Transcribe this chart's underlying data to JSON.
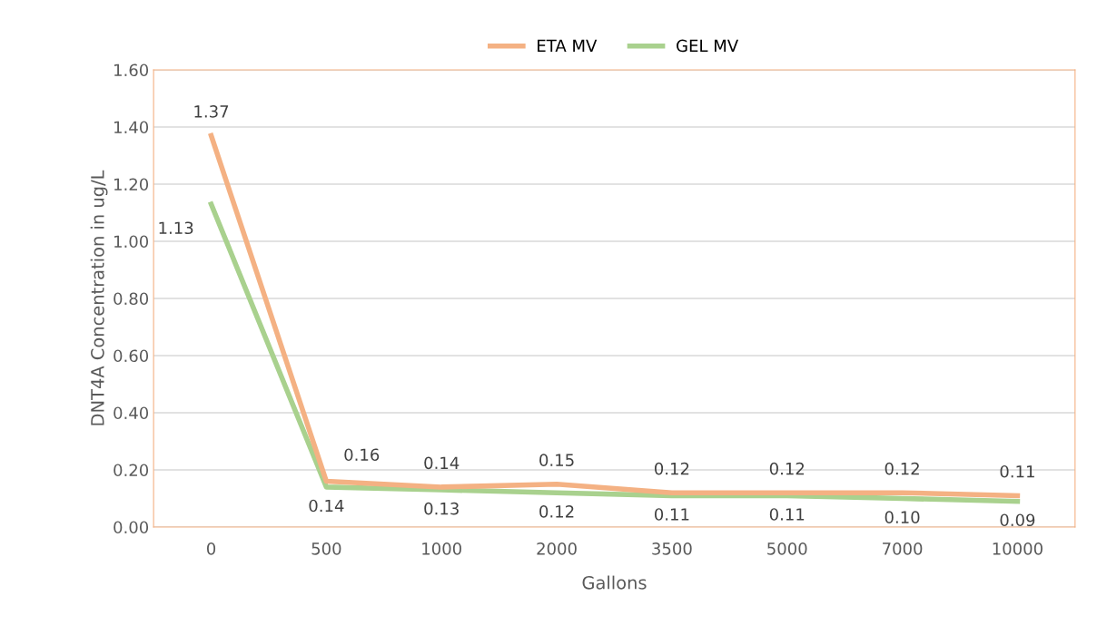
{
  "chart_data": {
    "type": "line",
    "xlabel": "Gallons",
    "ylabel": "DNT4A Concentration in ug/L",
    "categories": [
      "0",
      "500",
      "1000",
      "2000",
      "3500",
      "5000",
      "7000",
      "10000"
    ],
    "series": [
      {
        "name": "ETA MV",
        "color": "#f4b183",
        "values": [
          1.37,
          0.16,
          0.14,
          0.15,
          0.12,
          0.12,
          0.12,
          0.11
        ],
        "value_labels": [
          "1.37",
          "0.16",
          "0.14",
          "0.15",
          "0.12",
          "0.12",
          "0.12",
          "0.11"
        ]
      },
      {
        "name": "GEL MV",
        "color": "#a9d18e",
        "values": [
          1.13,
          0.14,
          0.13,
          0.12,
          0.11,
          0.11,
          0.1,
          0.09
        ],
        "value_labels": [
          "1.13",
          "0.14",
          "0.13",
          "0.12",
          "0.11",
          "0.11",
          "0.10",
          "0.09"
        ]
      }
    ],
    "ylim": [
      0,
      1.6
    ],
    "yticks": [
      {
        "value": 0,
        "label": "0.00"
      },
      {
        "value": 0.2,
        "label": "0.20"
      },
      {
        "value": 0.4,
        "label": "0.40"
      },
      {
        "value": 0.6,
        "label": "0.60"
      },
      {
        "value": 0.8,
        "label": "0.80"
      },
      {
        "value": 1.0,
        "label": "1.00"
      },
      {
        "value": 1.2,
        "label": "1.20"
      },
      {
        "value": 1.4,
        "label": "1.40"
      },
      {
        "value": 1.6,
        "label": "1.60"
      }
    ],
    "grid": "y",
    "legend": "top",
    "marker": "none",
    "line_style": "solid"
  }
}
